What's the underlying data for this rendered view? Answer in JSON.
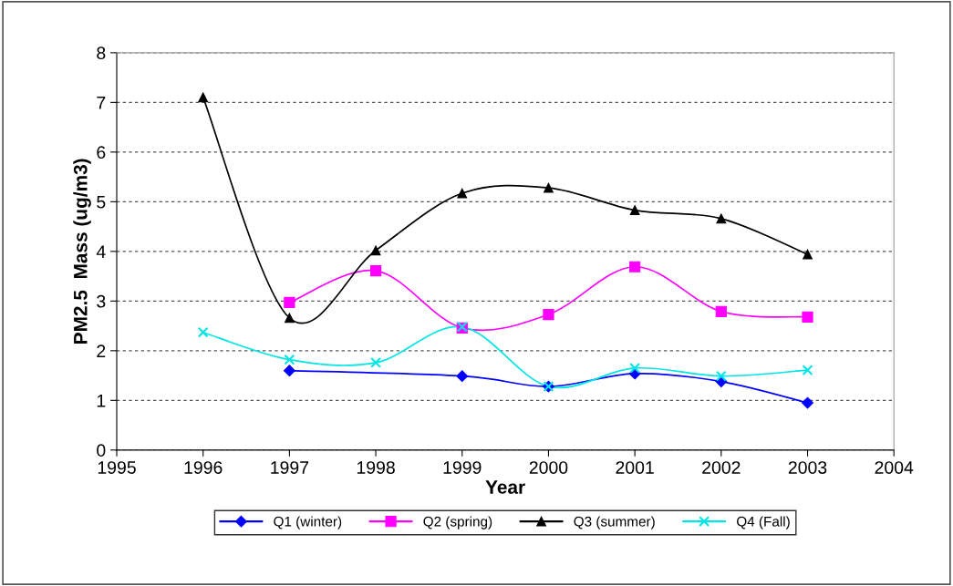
{
  "chart_data": {
    "type": "line",
    "xlabel": "Year",
    "ylabel": "PM2.5  Mass (ug/m3)",
    "x": [
      1996,
      1997,
      1998,
      1999,
      2000,
      2001,
      2002,
      2003
    ],
    "series": [
      {
        "name": "Q1 (winter)",
        "color": "#0000ff",
        "marker": "diamond",
        "values": [
          null,
          1.6,
          null,
          1.49,
          1.28,
          1.54,
          1.38,
          0.95
        ]
      },
      {
        "name": "Q2 (spring)",
        "color": "#ff00ff",
        "marker": "square",
        "values": [
          null,
          2.97,
          3.61,
          2.46,
          2.73,
          3.69,
          2.79,
          2.68
        ]
      },
      {
        "name": "Q3 (summer)",
        "color": "#000000",
        "marker": "triangle",
        "values": [
          7.1,
          2.66,
          4.02,
          5.17,
          5.28,
          4.83,
          4.66,
          3.94
        ]
      },
      {
        "name": "Q4 (Fall)",
        "color": "#00e5e5",
        "marker": "cross",
        "values": [
          2.37,
          1.82,
          1.76,
          2.48,
          1.28,
          1.65,
          1.49,
          1.61
        ]
      }
    ],
    "xlim": [
      1995,
      2004
    ],
    "xticks": [
      1995,
      1996,
      1997,
      1998,
      1999,
      2000,
      2001,
      2002,
      2003,
      2004
    ],
    "ylim": [
      0,
      8
    ],
    "yticks": [
      0,
      1,
      2,
      3,
      4,
      5,
      6,
      7,
      8
    ],
    "grid": "y",
    "legend": "bottom",
    "line_style": "solid"
  }
}
